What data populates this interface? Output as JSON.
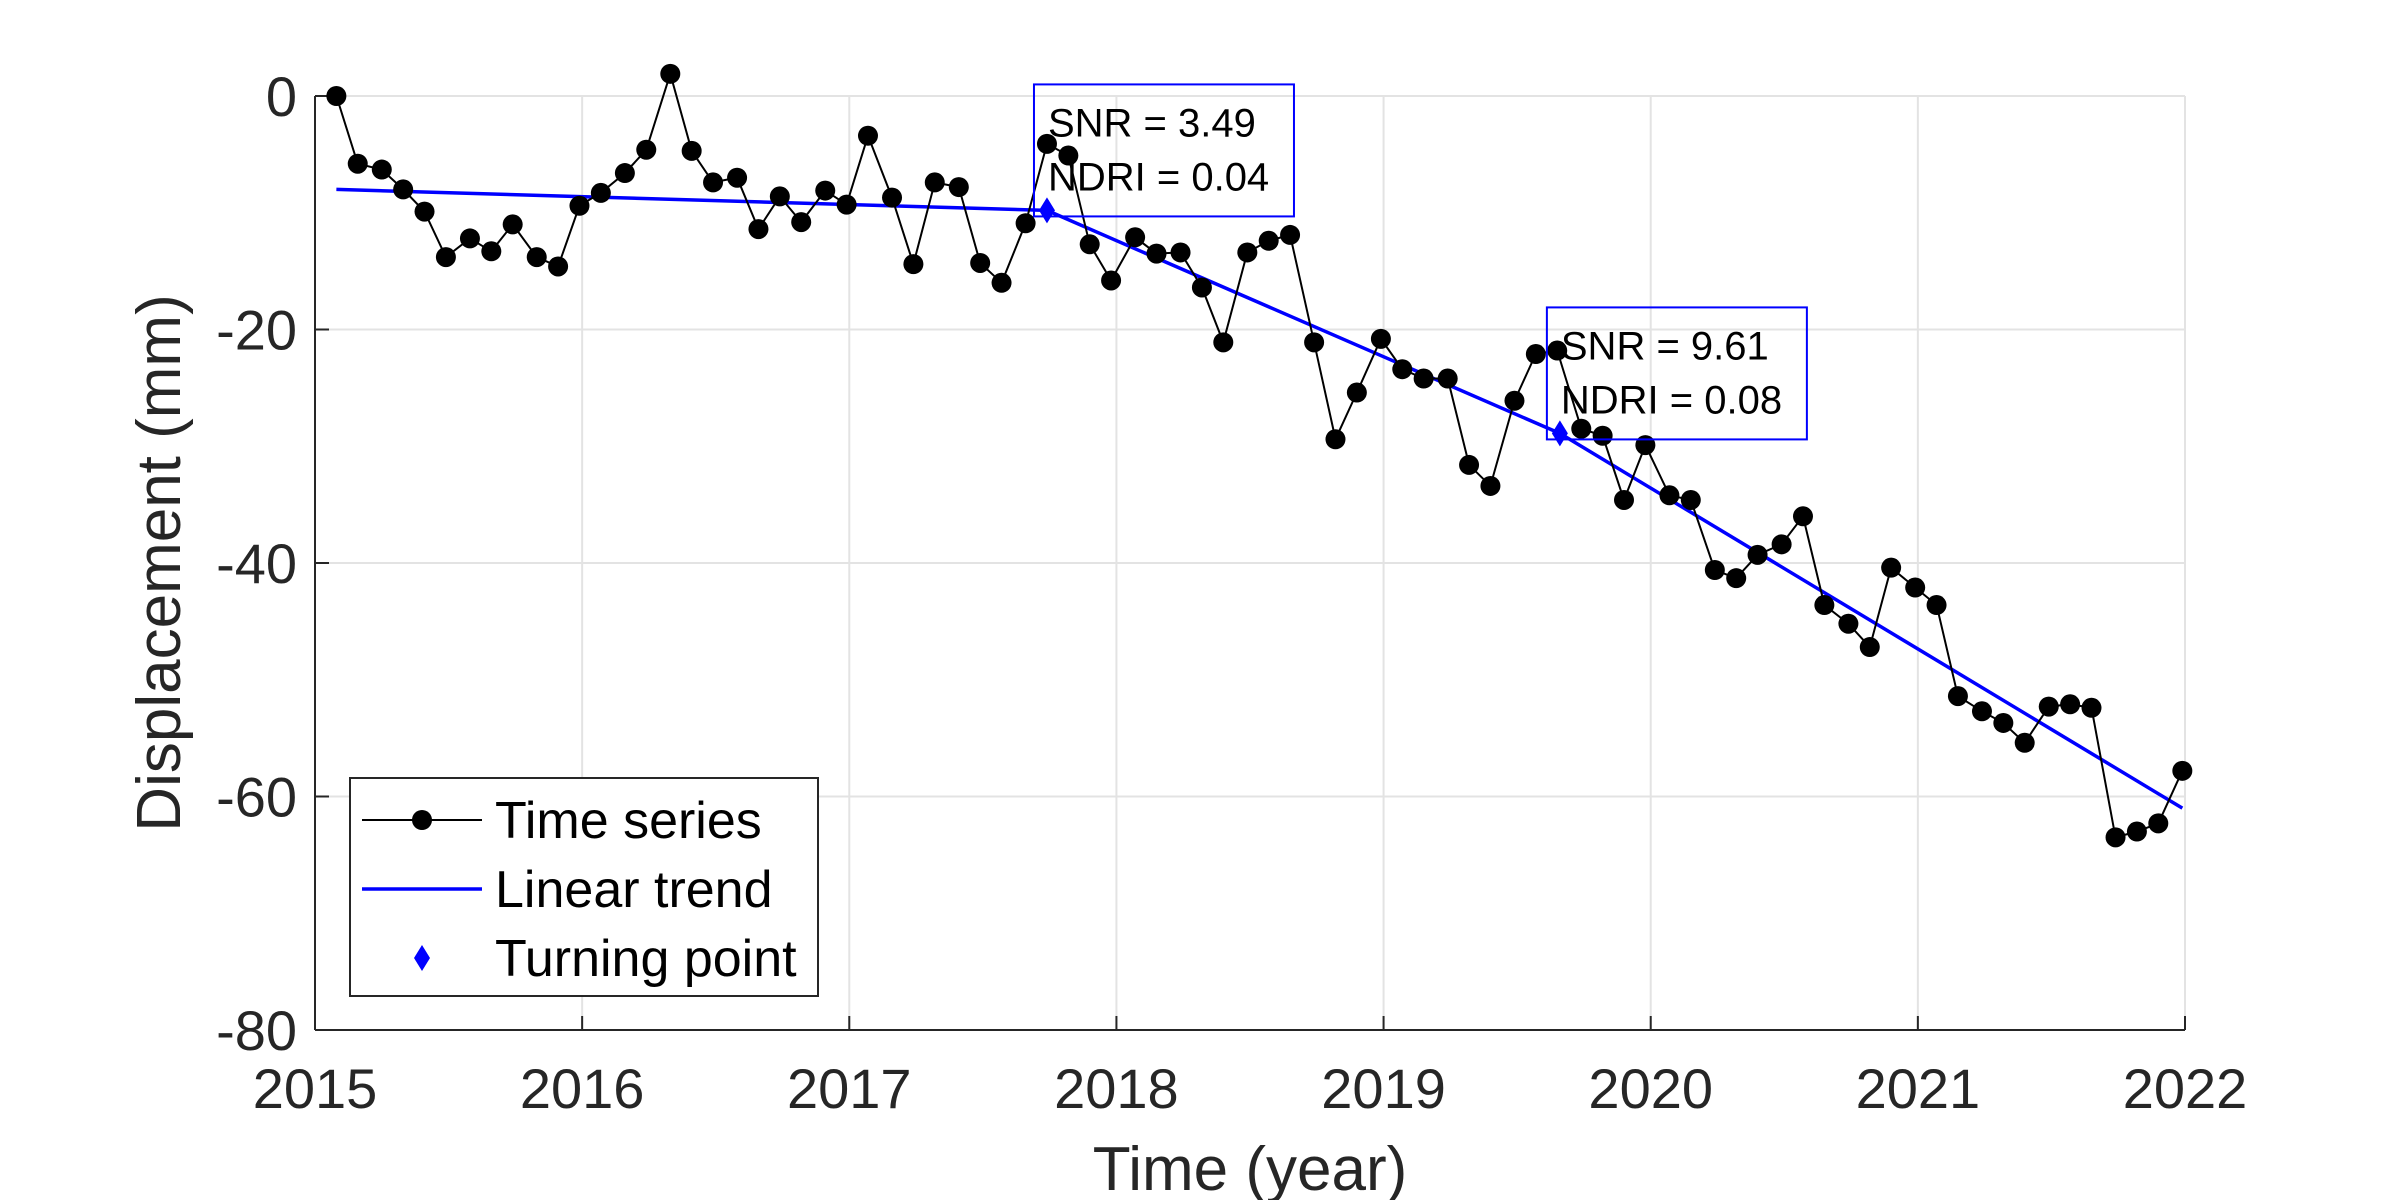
{
  "chart_data": {
    "type": "line",
    "title": "",
    "xlabel": "Time (year)",
    "ylabel": "Displacement (mm)",
    "xlim": [
      2015,
      2022
    ],
    "ylim": [
      -80,
      0
    ],
    "xticks": [
      2015,
      2016,
      2017,
      2018,
      2019,
      2020,
      2021,
      2022
    ],
    "yticks": [
      0,
      -20,
      -40,
      -60,
      -80
    ],
    "grid": true,
    "legend_position": "bottom-left",
    "series": [
      {
        "name": "Time series",
        "color": "#000000",
        "marker": "circle",
        "x": [
          2015.08,
          2015.16,
          2015.25,
          2015.33,
          2015.41,
          2015.49,
          2015.58,
          2015.66,
          2015.74,
          2015.83,
          2015.91,
          2015.99,
          2016.07,
          2016.16,
          2016.24,
          2016.33,
          2016.41,
          2016.49,
          2016.58,
          2016.66,
          2016.74,
          2016.82,
          2016.91,
          2016.99,
          2017.07,
          2017.16,
          2017.24,
          2017.32,
          2017.41,
          2017.49,
          2017.57,
          2017.66,
          2017.74,
          2017.82,
          2017.9,
          2017.98,
          2018.07,
          2018.15,
          2018.24,
          2018.32,
          2018.4,
          2018.49,
          2018.57,
          2018.65,
          2018.74,
          2018.82,
          2018.9,
          2018.99,
          2019.07,
          2019.15,
          2019.24,
          2019.32,
          2019.4,
          2019.49,
          2019.57,
          2019.65,
          2019.74,
          2019.82,
          2019.9,
          2019.98,
          2020.07,
          2020.15,
          2020.24,
          2020.32,
          2020.4,
          2020.49,
          2020.57,
          2020.65,
          2020.74,
          2020.82,
          2020.9,
          2020.99,
          2021.07,
          2021.15,
          2021.24,
          2021.32,
          2021.4,
          2021.49,
          2021.57,
          2021.65,
          2021.74,
          2021.82,
          2021.9,
          2021.99
        ],
        "y": [
          0.0,
          -5.8,
          -6.3,
          -8.0,
          -9.9,
          -13.8,
          -12.2,
          -13.3,
          -11.0,
          -13.8,
          -14.6,
          -9.4,
          -8.3,
          -6.6,
          -4.6,
          1.9,
          -4.7,
          -7.4,
          -7.0,
          -11.4,
          -8.6,
          -10.8,
          -8.1,
          -9.3,
          -3.4,
          -8.7,
          -14.4,
          -7.4,
          -7.8,
          -14.3,
          -16.0,
          -10.9,
          -4.1,
          -5.1,
          -12.7,
          -15.8,
          -12.1,
          -13.5,
          -13.4,
          -16.4,
          -21.1,
          -13.4,
          -12.4,
          -11.9,
          -21.1,
          -29.4,
          -25.4,
          -20.8,
          -23.4,
          -24.2,
          -24.2,
          -31.6,
          -33.4,
          -26.1,
          -22.1,
          -21.8,
          -28.5,
          -29.1,
          -34.6,
          -29.9,
          -34.2,
          -34.6,
          -40.6,
          -41.3,
          -39.3,
          -38.4,
          -36.0,
          -43.6,
          -45.2,
          -47.2,
          -40.4,
          -42.1,
          -43.6,
          -51.4,
          -52.7,
          -53.7,
          -55.4,
          -52.3,
          -52.1,
          -52.4,
          -63.5,
          -63.0,
          -62.3,
          -57.8
        ]
      },
      {
        "name": "Linear trend",
        "color": "#0000ff",
        "segments": [
          {
            "x": [
              2015.08,
              2017.74
            ],
            "y": [
              -8.0,
              -9.8
            ]
          },
          {
            "x": [
              2017.74,
              2019.66
            ],
            "y": [
              -9.8,
              -28.9
            ]
          },
          {
            "x": [
              2019.66,
              2021.99
            ],
            "y": [
              -28.9,
              -61.0
            ]
          }
        ]
      },
      {
        "name": "Turning point",
        "color": "#0000ff",
        "marker": "diamond",
        "x": [
          2017.74,
          2019.66
        ],
        "y": [
          -9.8,
          -28.9
        ]
      }
    ],
    "annotations": [
      {
        "line1": "SNR = 3.49",
        "line2": "NDRI = 0.04",
        "x": 2017.74,
        "y": -9.8
      },
      {
        "line1": "SNR = 9.61",
        "line2": "NDRI = 0.08",
        "x": 2019.66,
        "y": -28.9
      }
    ]
  }
}
